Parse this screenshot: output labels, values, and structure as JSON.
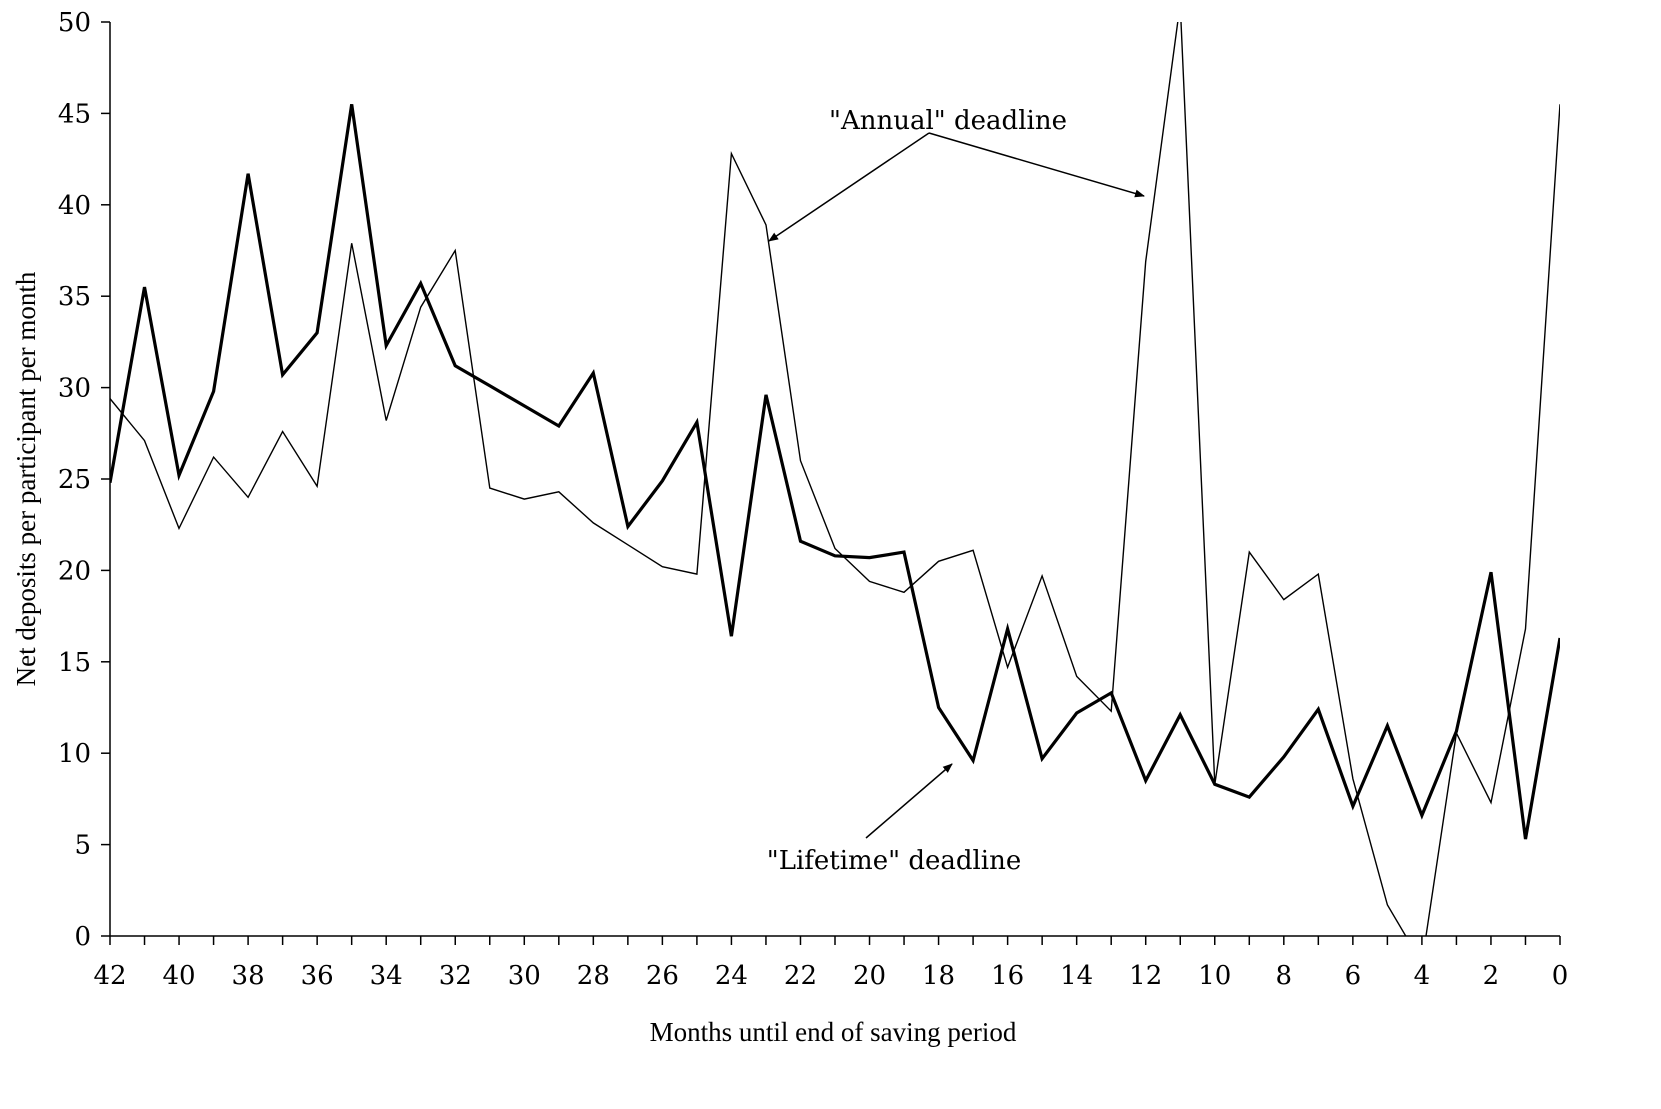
{
  "chart_data": {
    "type": "line",
    "title": "",
    "xlabel": "Months until end of saving period",
    "ylabel": "Net deposits per participant per month",
    "x": [
      42,
      41,
      40,
      39,
      38,
      37,
      36,
      35,
      34,
      33,
      32,
      31,
      30,
      29,
      28,
      27,
      26,
      25,
      24,
      23,
      22,
      21,
      20,
      19,
      18,
      17,
      16,
      15,
      14,
      13,
      12,
      11,
      10,
      9,
      8,
      7,
      6,
      5,
      4,
      3,
      2,
      1,
      0
    ],
    "xlim": [
      42,
      0
    ],
    "ylim": [
      0,
      50
    ],
    "x_ticks": [
      "42",
      "40",
      "38",
      "36",
      "34",
      "32",
      "30",
      "28",
      "26",
      "24",
      "22",
      "20",
      "18",
      "16",
      "14",
      "12",
      "10",
      "8",
      "6",
      "4",
      "2",
      "0"
    ],
    "y_ticks": [
      "0",
      "5",
      "10",
      "15",
      "20",
      "25",
      "30",
      "35",
      "40",
      "45",
      "50"
    ],
    "grid": false,
    "series": [
      {
        "key": "lifetime",
        "style": "thick",
        "color": "#000000",
        "values": [
          24.8,
          35.5,
          25.2,
          29.8,
          41.7,
          30.7,
          33.0,
          45.5,
          32.3,
          35.7,
          31.2,
          30.1,
          29.0,
          27.9,
          30.8,
          22.4,
          24.9,
          28.1,
          16.4,
          29.6,
          21.6,
          20.8,
          20.7,
          21.0,
          12.5,
          9.6,
          16.8,
          9.7,
          12.2,
          13.3,
          8.5,
          12.1,
          8.3,
          7.6,
          9.8,
          12.4,
          7.1,
          11.5,
          6.6,
          11.2,
          19.9,
          5.3,
          16.3
        ]
      },
      {
        "key": "annual",
        "style": "thin",
        "color": "#000000",
        "values": [
          29.4,
          27.1,
          22.3,
          26.2,
          24.0,
          27.6,
          24.6,
          37.9,
          28.2,
          34.4,
          37.5,
          24.5,
          23.9,
          24.3,
          22.6,
          21.4,
          20.2,
          19.8,
          42.8,
          38.9,
          26.0,
          21.2,
          19.4,
          18.8,
          20.5,
          21.1,
          14.7,
          19.7,
          14.2,
          12.3,
          36.9,
          51.0,
          8.3,
          21.0,
          18.4,
          19.8,
          8.6,
          1.7,
          -1.5,
          11.1,
          7.3,
          16.8,
          45.5
        ]
      }
    ],
    "annotations": {
      "annual": "\"Annual\" deadline",
      "lifetime": "\"Lifetime\" deadline"
    }
  }
}
